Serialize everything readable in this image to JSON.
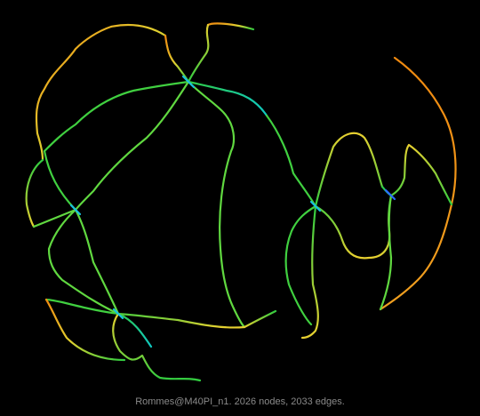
{
  "caption": "Rommes@M40PI_n1. 2026 nodes, 2033 edges.",
  "background_color": "#000000",
  "edge_color_scale": [
    "#2a4cff",
    "#00c8c8",
    "#22cc44",
    "#9ee830",
    "#f0d030",
    "#f08a10"
  ]
}
